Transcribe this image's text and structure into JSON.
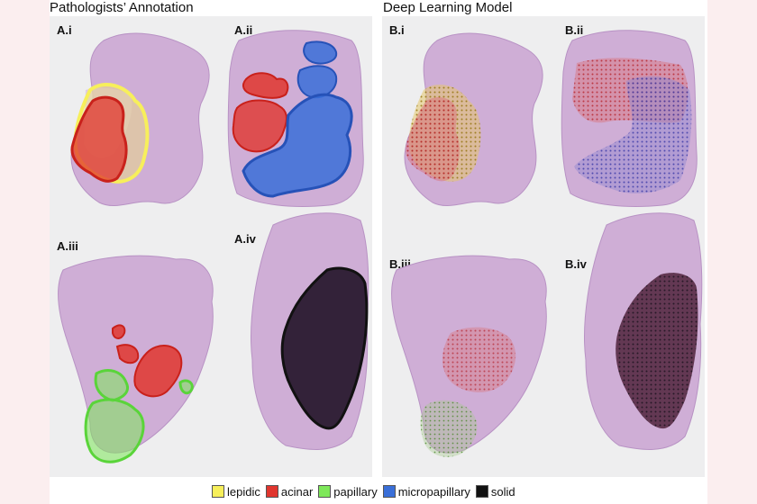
{
  "titles": {
    "left": "Pathologists’ Annotation",
    "right": "Deep Learning Model"
  },
  "panels": {
    "ai": "A.i",
    "aii": "A.ii",
    "aiii": "A.iii",
    "aiv": "A.iv",
    "bi": "B.i",
    "bii": "B.ii",
    "biii": "B.iii",
    "biv": "B.iv"
  },
  "legend": [
    {
      "label": "lepidic",
      "color": "#f7ef5b"
    },
    {
      "label": "acinar",
      "color": "#e0362e"
    },
    {
      "label": "papillary",
      "color": "#7ee85a"
    },
    {
      "label": "micropapillary",
      "color": "#3a6fd8"
    },
    {
      "label": "solid",
      "color": "#111111"
    }
  ],
  "colors": {
    "tissue": "#cfaed6",
    "tissue_dark": "#b88fc6",
    "lepidic": "#f7ef5b",
    "acinar": "#e0362e",
    "papillary": "#7ee85a",
    "micropapillary": "#3a6fd8",
    "solid": "#111111"
  }
}
